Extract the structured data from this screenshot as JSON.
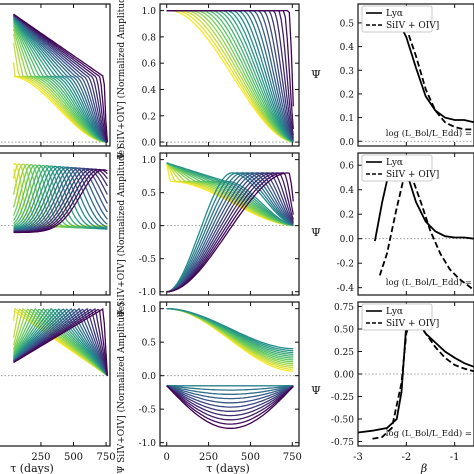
{
  "figure": {
    "left_col": {
      "x_tick_labels": [
        "250",
        "500",
        "750"
      ],
      "xlabel": "τ (days)"
    },
    "mid_col": {
      "ylabel": "Ψ SiIV+OIV] (Normalized Amplitude)",
      "x_tick_labels": [
        "0",
        "250",
        "500",
        "750"
      ],
      "xlabel": "τ (days)",
      "y_ticks": [
        [
          "0.0",
          "0.2",
          "0.4",
          "0.6",
          "0.8",
          "1.0"
        ],
        [
          "-1.0",
          "-0.5",
          "0.0",
          "0.5",
          "1.0"
        ],
        [
          "-1.0",
          "-0.5",
          "0.0",
          "0.5",
          "1.0"
        ]
      ]
    },
    "right_col": {
      "ylabel": "Ψ",
      "xlabel": "β",
      "x_tick_labels": [
        "-3",
        "-2",
        "-1"
      ],
      "legend": [
        "Lyα",
        "SiIV + OIV]"
      ],
      "note": "log (L_Bol/L_Edd) =",
      "y_ticks": [
        [
          "0.0",
          "0.1",
          "0.2",
          "0.3",
          "0.4",
          "0.5"
        ],
        [
          "-0.4",
          "-0.2",
          "0.0",
          "0.2",
          "0.4",
          "0.6"
        ],
        [
          "-0.75",
          "-0.50",
          "-0.25",
          "0.00",
          "0.25",
          "0.50",
          "0.75"
        ]
      ]
    }
  },
  "chart_data": [
    {
      "type": "line",
      "panel": "right-top",
      "xlabel": "β",
      "ylabel": "Ψ",
      "xlim": [
        -3.0,
        -0.6
      ],
      "ylim": [
        -0.02,
        0.58
      ],
      "series": [
        {
          "name": "Lyα",
          "style": "solid",
          "x": [
            -2.4,
            -2.2,
            -2.0,
            -1.8,
            -1.6,
            -1.4,
            -1.2,
            -1.0,
            -0.8,
            -0.6
          ],
          "y": [
            0.55,
            0.52,
            0.44,
            0.31,
            0.19,
            0.13,
            0.1,
            0.09,
            0.09,
            0.08
          ]
        },
        {
          "name": "SiIV + OIV]",
          "style": "dashed",
          "x": [
            -2.2,
            -2.0,
            -1.8,
            -1.6,
            -1.4,
            -1.2,
            -1.0,
            -0.8,
            -0.6
          ],
          "y": [
            0.55,
            0.48,
            0.36,
            0.22,
            0.13,
            0.08,
            0.06,
            0.05,
            0.05
          ]
        }
      ]
    },
    {
      "type": "line",
      "panel": "right-middle",
      "xlabel": "β",
      "ylabel": "Ψ",
      "xlim": [
        -3.0,
        -0.6
      ],
      "ylim": [
        -0.46,
        0.7
      ],
      "series": [
        {
          "name": "Lyα",
          "style": "solid",
          "x": [
            -2.65,
            -2.5,
            -2.35,
            -2.2,
            -2.0,
            -1.8,
            -1.6,
            -1.4,
            -1.2,
            -1.0,
            -0.8,
            -0.6
          ],
          "y": [
            -0.02,
            0.3,
            0.56,
            0.65,
            0.55,
            0.3,
            0.14,
            0.06,
            0.02,
            0.01,
            0.01,
            0.0
          ]
        },
        {
          "name": "SiIV + OIV]",
          "style": "dashed",
          "x": [
            -2.55,
            -2.4,
            -2.2,
            -2.05,
            -1.9,
            -1.7,
            -1.5,
            -1.3,
            -1.1,
            -0.9,
            -0.7,
            -0.6
          ],
          "y": [
            -0.3,
            -0.12,
            0.25,
            0.5,
            0.52,
            0.3,
            0.06,
            -0.12,
            -0.25,
            -0.33,
            -0.39,
            -0.42
          ]
        }
      ]
    },
    {
      "type": "line",
      "panel": "right-bottom",
      "xlabel": "β",
      "ylabel": "Ψ",
      "xlim": [
        -3.0,
        -0.6
      ],
      "ylim": [
        -0.8,
        0.8
      ],
      "series": [
        {
          "name": "Lyα",
          "style": "solid",
          "x": [
            -3.0,
            -2.7,
            -2.4,
            -2.2,
            -2.1,
            -2.0,
            -1.9,
            -1.8,
            -1.6,
            -1.4,
            -1.2,
            -1.0,
            -0.8,
            -0.6
          ],
          "y": [
            -0.65,
            -0.63,
            -0.6,
            -0.5,
            -0.2,
            0.55,
            0.7,
            0.62,
            0.45,
            0.35,
            0.25,
            0.18,
            0.12,
            0.08
          ]
        },
        {
          "name": "SiIV + OIV]",
          "style": "dashed",
          "x": [
            -2.7,
            -2.5,
            -2.3,
            -2.1,
            -2.0,
            -1.9,
            -1.8,
            -1.6,
            -1.4,
            -1.2,
            -1.0,
            -0.8,
            -0.6
          ],
          "y": [
            -0.72,
            -0.7,
            -0.6,
            -0.1,
            0.45,
            0.62,
            0.6,
            0.45,
            0.3,
            0.18,
            0.1,
            0.06,
            0.03
          ]
        }
      ]
    }
  ]
}
